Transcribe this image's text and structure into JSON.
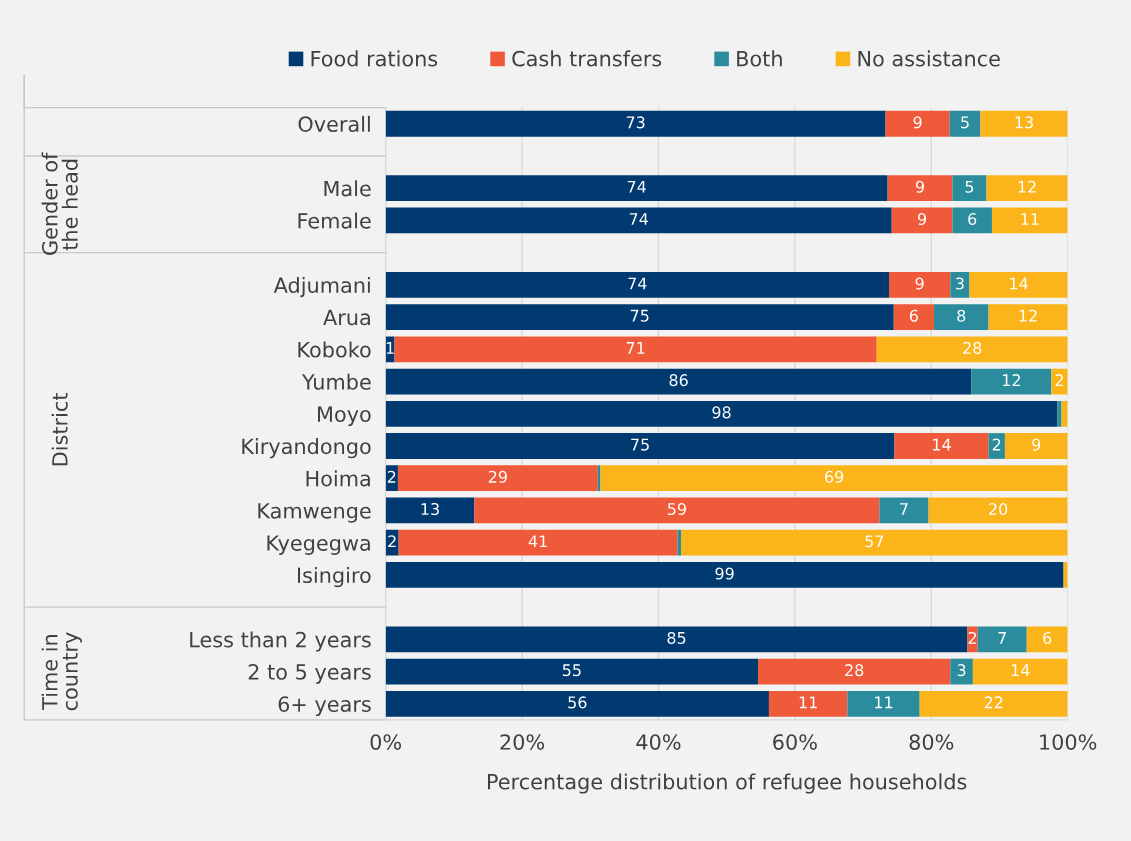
{
  "chart_data": {
    "type": "bar",
    "orientation": "horizontal",
    "stacked": true,
    "categories": [
      "Overall",
      null,
      "Male",
      "Female",
      null,
      "Adjumani",
      "Arua",
      "Koboko",
      "Yumbe",
      "Moyo",
      "Kiryandongo",
      "Hoima",
      "Kamwenge",
      "Kyegegwa",
      "Isingiro",
      null,
      "Less than 2 years",
      "2 to 5 years",
      "6+ years"
    ],
    "series": [
      {
        "name": "Food rations",
        "color": "#003a70",
        "values": [
          73.3,
          null,
          73.6,
          74.2,
          null,
          73.8,
          74.5,
          1.3,
          85.9,
          98.5,
          74.6,
          1.8,
          13.0,
          1.9,
          99.4,
          null,
          85.3,
          54.6,
          56.2
        ],
        "value_labels": [
          "73",
          null,
          "74",
          "74",
          null,
          "74",
          "75",
          "1",
          "86",
          "98",
          "75",
          "2",
          "13",
          "2",
          "99",
          null,
          "85",
          "55",
          "56"
        ]
      },
      {
        "name": "Cash transfers",
        "color": "#ef5b3a",
        "values": [
          9.4,
          null,
          9.5,
          8.9,
          null,
          9.0,
          5.9,
          70.7,
          0,
          0,
          13.8,
          29.3,
          59.4,
          40.9,
          0,
          null,
          1.5,
          28.2,
          11.5
        ],
        "value_labels": [
          "9",
          null,
          "9",
          "9",
          null,
          "9",
          "6",
          "71",
          null,
          null,
          "14",
          "29",
          "59",
          "41",
          null,
          null,
          "2",
          "28",
          "11"
        ]
      },
      {
        "name": "Both",
        "color": "#2a8c9c",
        "values": [
          4.5,
          null,
          5.0,
          5.8,
          null,
          2.8,
          8.0,
          0,
          11.7,
          0.6,
          2.4,
          0.4,
          7.2,
          0.5,
          0,
          null,
          7.2,
          3.3,
          10.6
        ],
        "value_labels": [
          "5",
          null,
          "5",
          "6",
          null,
          "3",
          "8",
          null,
          "12",
          null,
          "2",
          null,
          "7",
          null,
          null,
          null,
          "7",
          "3",
          "11"
        ]
      },
      {
        "name": "No assistance",
        "color": "#fbb41a",
        "values": [
          12.8,
          null,
          11.9,
          11.1,
          null,
          14.4,
          11.6,
          28.0,
          2.4,
          0.9,
          9.2,
          68.5,
          20.4,
          56.7,
          0.6,
          null,
          6.0,
          13.9,
          21.7
        ],
        "value_labels": [
          "13",
          null,
          "12",
          "11",
          null,
          "14",
          "12",
          "28",
          "2",
          null,
          "9",
          "69",
          "20",
          "57",
          null,
          null,
          "6",
          "14",
          "22"
        ]
      }
    ],
    "xlim": [
      0,
      100
    ],
    "xticks": [
      {
        "value": 0,
        "label": "0%"
      },
      {
        "value": 20,
        "label": "20%"
      },
      {
        "value": 40,
        "label": "40%"
      },
      {
        "value": 60,
        "label": "60%"
      },
      {
        "value": 80,
        "label": "80%"
      },
      {
        "value": 100,
        "label": "100%"
      }
    ],
    "xlabel": "Percentage distribution of refugee households",
    "annotations": [
      "Gender of the head",
      "District",
      "Time in country"
    ],
    "grid": "x",
    "legend": "top"
  }
}
